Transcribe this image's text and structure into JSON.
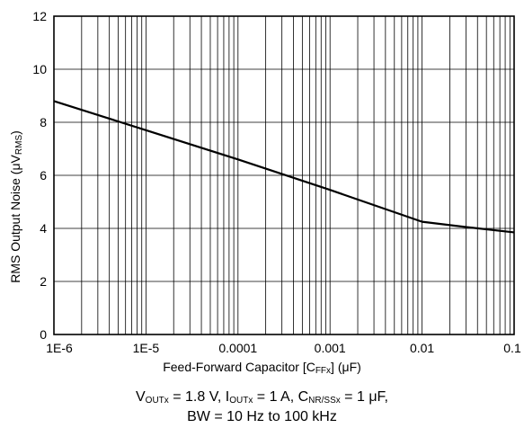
{
  "chart_data": {
    "type": "line",
    "xscale": "log",
    "xlim": [
      1e-06,
      0.1
    ],
    "ylim": [
      0,
      12
    ],
    "x_tick_labels": [
      "1E-6",
      "1E-5",
      "0.0001",
      "0.001",
      "0.01",
      "0.1"
    ],
    "x_tick_values": [
      1e-06,
      1e-05,
      0.0001,
      0.001,
      0.01,
      0.1
    ],
    "y_tick_labels": [
      "0",
      "2",
      "4",
      "6",
      "8",
      "10",
      "12"
    ],
    "y_tick_values": [
      0,
      2,
      4,
      6,
      8,
      10,
      12
    ],
    "grid": true,
    "line_color": "#000000",
    "ylabel": {
      "prefix": "RMS Output Noise (",
      "mu": "μ",
      "v": "V",
      "sub": "RMS",
      "suffix": ")"
    },
    "xlabel": {
      "prefix": "Feed-Forward Capacitor [C",
      "sub": "FFx",
      "middle": "] (",
      "mu": "μ",
      "suffix": "F)"
    },
    "caption": {
      "line1": {
        "v": "V",
        "v_sub": "OUTx",
        "v_text": " = 1.8 V, I",
        "i_sub": "OUTx",
        "i_text": " = 1 A, C",
        "c_sub": "NR/SSx",
        "c_text": " = 1 μF,"
      },
      "line2": "BW = 10 Hz to 100 kHz"
    },
    "series": [
      {
        "x": [
          1e-06,
          1e-05,
          0.0001,
          0.001,
          0.01,
          0.03,
          0.1
        ],
        "y": [
          8.8,
          7.7,
          6.6,
          5.45,
          4.25,
          4.05,
          3.85
        ]
      }
    ]
  }
}
